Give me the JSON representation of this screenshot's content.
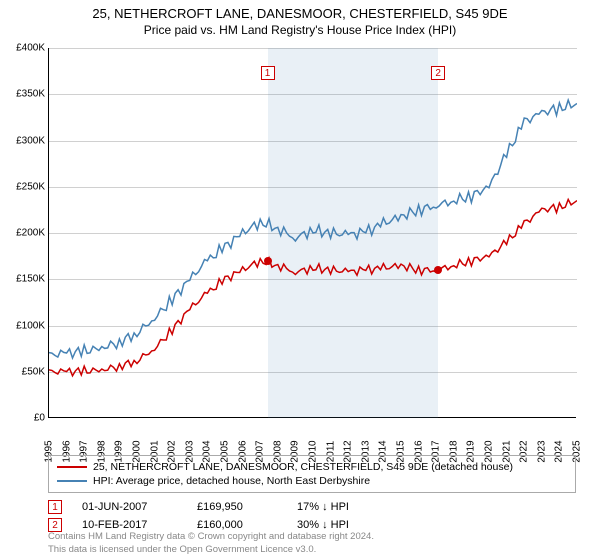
{
  "title": "25, NETHERCROFT LANE, DANESMOOR, CHESTERFIELD, S45 9DE",
  "subtitle": "Price paid vs. HM Land Registry's House Price Index (HPI)",
  "chart": {
    "type": "line",
    "background_color": "#ffffff",
    "grid_color": "#d0d0d0",
    "x_min": 1995,
    "x_max": 2025,
    "y_min": 0,
    "y_max": 400000,
    "y_ticks": [
      0,
      50000,
      100000,
      150000,
      200000,
      250000,
      300000,
      350000,
      400000
    ],
    "y_tick_labels": [
      "£0",
      "£50K",
      "£100K",
      "£150K",
      "£200K",
      "£250K",
      "£300K",
      "£350K",
      "£400K"
    ],
    "x_ticks": [
      1995,
      1996,
      1997,
      1998,
      1999,
      2000,
      2001,
      2002,
      2003,
      2004,
      2005,
      2006,
      2007,
      2008,
      2009,
      2010,
      2011,
      2012,
      2013,
      2014,
      2015,
      2016,
      2017,
      2018,
      2019,
      2020,
      2021,
      2022,
      2023,
      2024,
      2025
    ],
    "shade_start": 2007.42,
    "shade_end": 2017.11,
    "series": [
      {
        "name": "property",
        "color": "#cc0000",
        "width": 1.5,
        "y": [
          50000,
          50000,
          50500,
          52000,
          56000,
          62000,
          75000,
          95000,
          118000,
          135000,
          150000,
          160000,
          170000,
          165000,
          158000,
          162000,
          160000,
          158000,
          160000,
          162000,
          165000,
          160000,
          160000,
          165000,
          170000,
          175000,
          190000,
          210000,
          225000,
          228000,
          235000
        ]
      },
      {
        "name": "hpi",
        "color": "#4682b4",
        "width": 1.5,
        "y": [
          68000,
          70000,
          72000,
          76000,
          82000,
          92000,
          108000,
          128000,
          150000,
          170000,
          185000,
          200000,
          212000,
          205000,
          195000,
          203000,
          200000,
          198000,
          201000,
          210000,
          218000,
          225000,
          230000,
          235000,
          240000,
          250000,
          285000,
          320000,
          330000,
          335000,
          340000
        ]
      }
    ],
    "markers": [
      {
        "num": "1",
        "x": 2007.42,
        "y": 169950,
        "dot_color": "#cc0000"
      },
      {
        "num": "2",
        "x": 2017.11,
        "y": 160000,
        "dot_color": "#cc0000"
      }
    ]
  },
  "legend": {
    "items": [
      {
        "color": "#cc0000",
        "label": "25, NETHERCROFT LANE, DANESMOOR, CHESTERFIELD, S45 9DE (detached house)"
      },
      {
        "color": "#4682b4",
        "label": "HPI: Average price, detached house, North East Derbyshire"
      }
    ]
  },
  "sales": [
    {
      "num": "1",
      "date": "01-JUN-2007",
      "price": "£169,950",
      "delta": "17% ↓ HPI"
    },
    {
      "num": "2",
      "date": "10-FEB-2017",
      "price": "£160,000",
      "delta": "30% ↓ HPI"
    }
  ],
  "footer_line1": "Contains HM Land Registry data © Crown copyright and database right 2024.",
  "footer_line2": "This data is licensed under the Open Government Licence v3.0."
}
